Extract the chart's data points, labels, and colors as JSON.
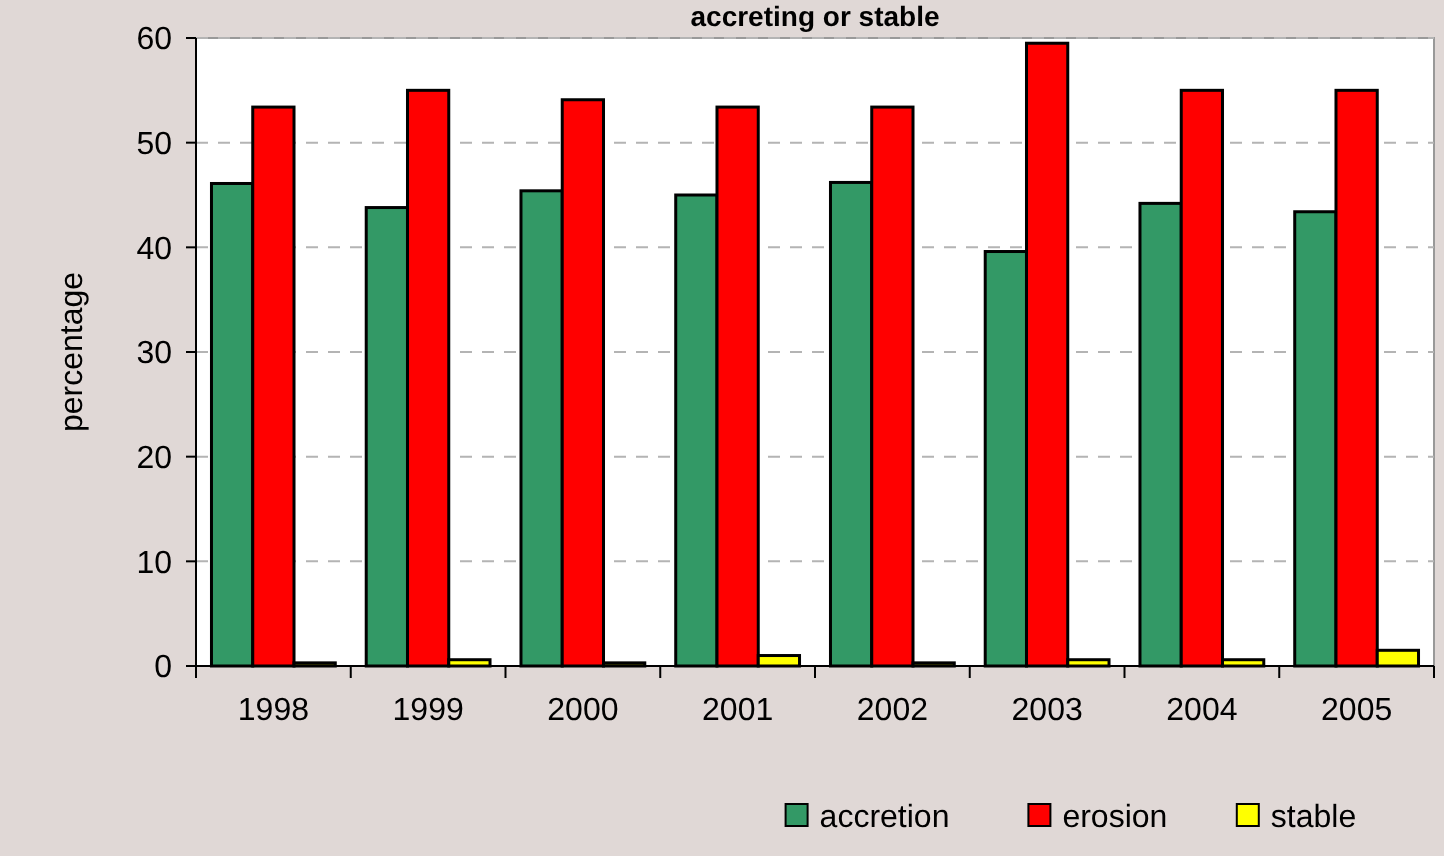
{
  "chart_data": {
    "type": "bar",
    "title": "accreting or stable",
    "ylabel": "percentage",
    "categories": [
      "1998",
      "1999",
      "2000",
      "2001",
      "2002",
      "2003",
      "2004",
      "2005"
    ],
    "series": [
      {
        "name": "accretion",
        "color": "#339966",
        "values": [
          46.1,
          43.8,
          45.4,
          45.0,
          46.2,
          39.6,
          44.2,
          43.4
        ]
      },
      {
        "name": "erosion",
        "color": "#ff0000",
        "values": [
          53.4,
          55.0,
          54.1,
          53.4,
          53.4,
          59.5,
          55.0,
          55.0
        ]
      },
      {
        "name": "stable",
        "color": "#ffff00",
        "values": [
          0.3,
          0.6,
          0.3,
          1.0,
          0.3,
          0.6,
          0.6,
          1.5
        ]
      }
    ],
    "ylim": [
      0,
      60
    ],
    "yticks": [
      0,
      10,
      20,
      30,
      40,
      50,
      60
    ],
    "grid": "y",
    "legend": "bottom right"
  }
}
